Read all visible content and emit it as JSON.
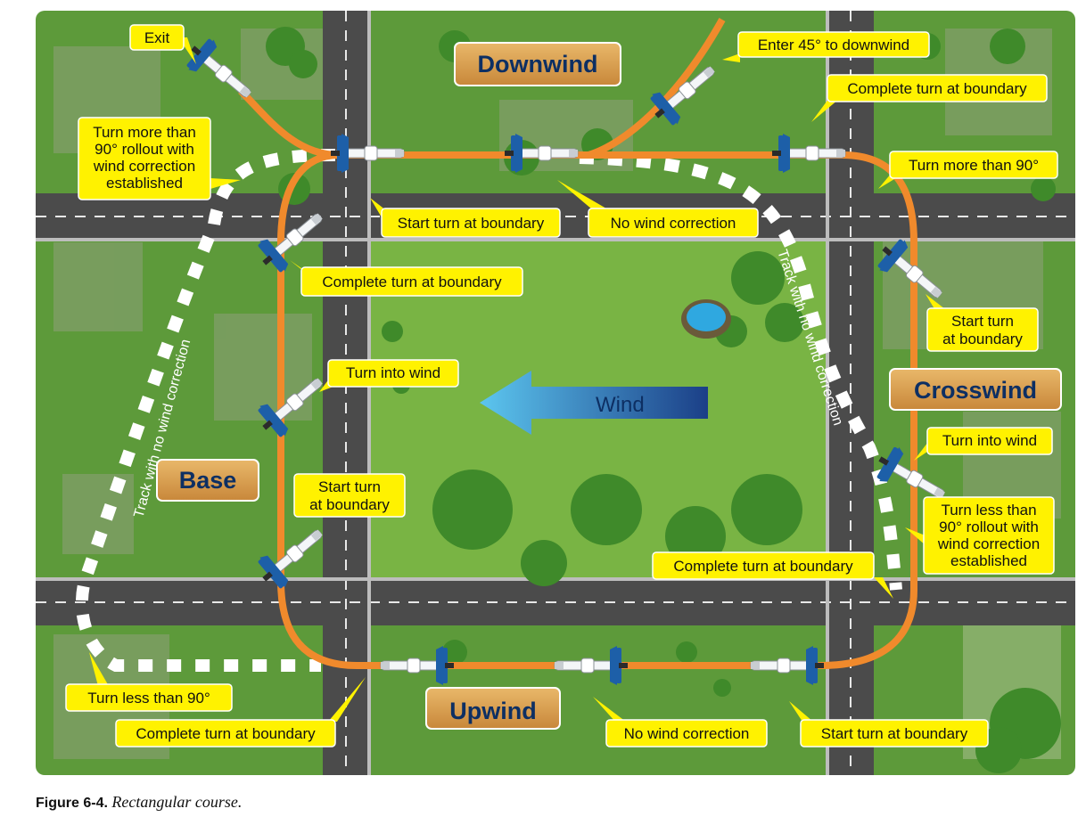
{
  "legs": {
    "downwind": "Downwind",
    "crosswind": "Crosswind",
    "base": "Base",
    "upwind": "Upwind"
  },
  "wind_label": "Wind",
  "track_labels": {
    "left": "Track with no wind correction",
    "right": "Track with no wind correction"
  },
  "callouts": {
    "exit": "Exit",
    "enter_45": "Enter 45° to downwind",
    "complete_turn_top_right": "Complete turn at boundary",
    "turn_more_90_left": [
      "Turn more than",
      "90° rollout with",
      "wind correction",
      "established"
    ],
    "turn_more_90_right": "Turn more than 90°",
    "start_turn_top": "Start turn at boundary",
    "no_wind_correction_top": "No wind correction",
    "complete_turn_left_top": "Complete turn at boundary",
    "start_turn_right": [
      "Start turn",
      "at boundary"
    ],
    "turn_into_wind_left": "Turn into wind",
    "turn_into_wind_right": "Turn into wind",
    "start_turn_left": [
      "Start turn",
      "at boundary"
    ],
    "turn_less_90_right": [
      "Turn less than",
      "90° rollout with",
      "wind correction",
      "established"
    ],
    "complete_turn_bottom_right": "Complete turn at boundary",
    "turn_less_90_left": "Turn less than 90°",
    "complete_turn_bottom_left": "Complete turn at boundary",
    "no_wind_correction_bottom": "No wind correction",
    "start_turn_bottom": "Start turn at boundary"
  },
  "caption": {
    "number": "Figure 6-4.",
    "text": "Rectangular course."
  },
  "colors": {
    "grass": "#5d9a3a",
    "field": "#79b444",
    "road": "#4b4b4b",
    "course": "#f08a2c",
    "callout": "#fff200",
    "leg_box": "#d9a24d",
    "wind_arrow_start": "#5cc6ef",
    "wind_arrow_end": "#1b3f87"
  }
}
